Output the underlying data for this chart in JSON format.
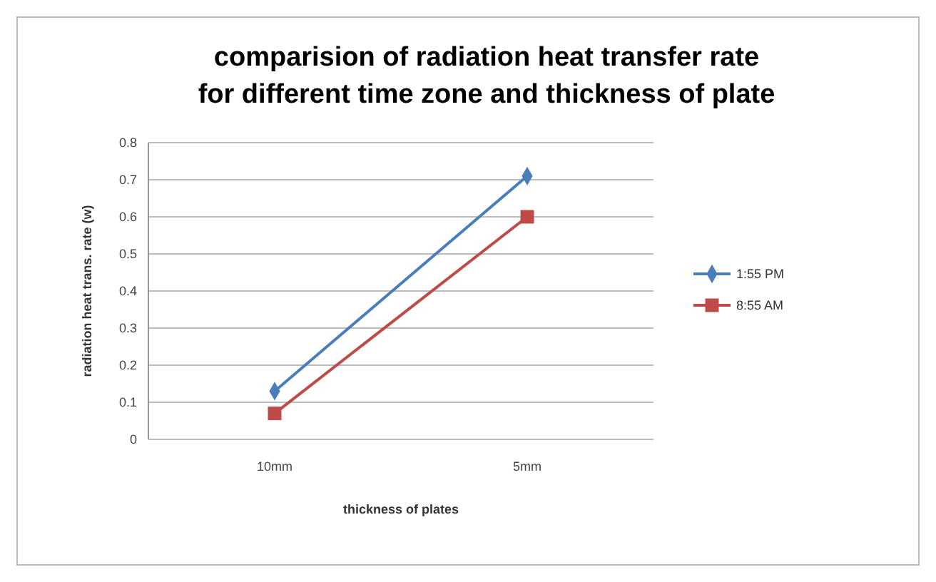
{
  "chart_data": {
    "type": "line",
    "title": "comparision of radiation heat transfer rate\nfor different time zone and thickness of plate",
    "xlabel": "thickness of plates",
    "ylabel": "radiation heat trans. rate  (w)",
    "categories": [
      "10mm",
      "5mm"
    ],
    "series": [
      {
        "name": "1:55 PM",
        "color": "#4a7ebb",
        "values": [
          0.13,
          0.71
        ],
        "marker": "diamond"
      },
      {
        "name": "8:55 AM",
        "color": "#be4b48",
        "values": [
          0.07,
          0.6
        ],
        "marker": "square"
      }
    ],
    "ylim": [
      0,
      0.8
    ],
    "yticks": [
      0,
      0.1,
      0.2,
      0.3,
      0.4,
      0.5,
      0.6,
      0.7,
      0.8
    ],
    "grid": "y",
    "legend": "right",
    "line_style": "solid"
  }
}
